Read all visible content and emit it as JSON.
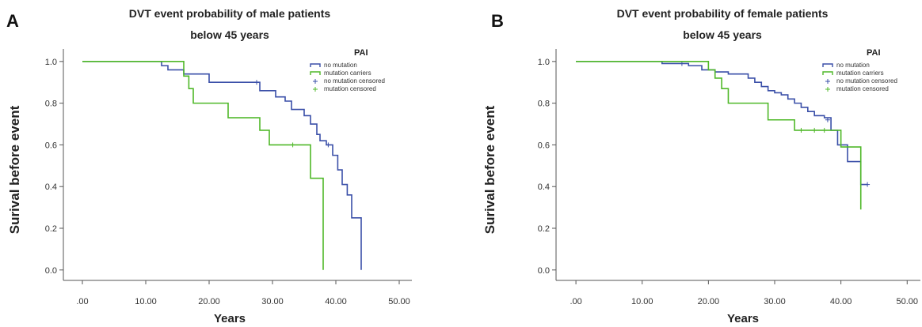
{
  "chart_data": [
    {
      "type": "line",
      "panel_label": "A",
      "title": "DVT event probability of male patients",
      "subtitle": "below  45 years",
      "xlabel": "Years",
      "ylabel": "Surival before event",
      "xlim": [
        -3,
        52
      ],
      "ylim": [
        -0.05,
        1.06
      ],
      "x_ticks": [
        0,
        10,
        20,
        30,
        40,
        50
      ],
      "x_tick_labels": [
        ".00",
        "10.00",
        "20.00",
        "30.00",
        "40.00",
        "50.00"
      ],
      "y_ticks": [
        0,
        0.2,
        0.4,
        0.6,
        0.8,
        1.0
      ],
      "y_tick_labels": [
        "0.0",
        "0.2",
        "0.4",
        "0.6",
        "0.8",
        "1.0"
      ],
      "legend": {
        "title": "PAI",
        "placement": "top-right",
        "entries": [
          {
            "label": "no mutation",
            "color": "#3a4fa8",
            "style": "step"
          },
          {
            "label": "mutation carriers",
            "color": "#4fb828",
            "style": "step"
          },
          {
            "label": "no mutation censored",
            "color": "#3a4fa8",
            "style": "plus"
          },
          {
            "label": "mutation censored",
            "color": "#4fb828",
            "style": "plus"
          }
        ]
      },
      "series": [
        {
          "name": "no mutation",
          "color": "#3a4fa8",
          "points": [
            [
              0,
              1.0
            ],
            [
              11.5,
              1.0
            ],
            [
              12.5,
              0.98
            ],
            [
              13.5,
              0.96
            ],
            [
              16,
              0.94
            ],
            [
              20,
              0.9
            ],
            [
              28,
              0.86
            ],
            [
              30.5,
              0.83
            ],
            [
              32,
              0.81
            ],
            [
              33,
              0.77
            ],
            [
              35,
              0.74
            ],
            [
              36,
              0.7
            ],
            [
              37,
              0.65
            ],
            [
              37.5,
              0.62
            ],
            [
              38.5,
              0.6
            ],
            [
              39.5,
              0.55
            ],
            [
              40.3,
              0.48
            ],
            [
              41,
              0.41
            ],
            [
              41.8,
              0.36
            ],
            [
              42.5,
              0.25
            ],
            [
              44,
              0.25
            ],
            [
              44,
              0.0
            ]
          ],
          "censored": [
            [
              27.5,
              0.9
            ],
            [
              38.8,
              0.6
            ]
          ]
        },
        {
          "name": "mutation carriers",
          "color": "#4fb828",
          "points": [
            [
              0,
              1.0
            ],
            [
              15,
              1.0
            ],
            [
              16,
              0.93
            ],
            [
              16.8,
              0.87
            ],
            [
              17.5,
              0.8
            ],
            [
              23,
              0.73
            ],
            [
              28,
              0.67
            ],
            [
              29.5,
              0.6
            ],
            [
              36,
              0.44
            ],
            [
              38,
              0.44
            ],
            [
              38,
              0.0
            ]
          ],
          "censored": [
            [
              33.2,
              0.6
            ]
          ]
        }
      ]
    },
    {
      "type": "line",
      "panel_label": "B",
      "title": "DVT event probability of female patients",
      "subtitle": "below  45 years",
      "xlabel": "Years",
      "ylabel": "Surival before event",
      "xlim": [
        -3,
        52
      ],
      "ylim": [
        -0.05,
        1.06
      ],
      "x_ticks": [
        0,
        10,
        20,
        30,
        40,
        50
      ],
      "x_tick_labels": [
        ".00",
        "10.00",
        "20.00",
        "30.00",
        "40.00",
        "50.00"
      ],
      "y_ticks": [
        0,
        0.2,
        0.4,
        0.6,
        0.8,
        1.0
      ],
      "y_tick_labels": [
        "0.0",
        "0.2",
        "0.4",
        "0.6",
        "0.8",
        "1.0"
      ],
      "legend": {
        "title": "PAI",
        "placement": "top-right",
        "entries": [
          {
            "label": "no mutation",
            "color": "#3a4fa8",
            "style": "step"
          },
          {
            "label": "mutation carriers",
            "color": "#4fb828",
            "style": "step"
          },
          {
            "label": "no mutation censored",
            "color": "#3a4fa8",
            "style": "plus"
          },
          {
            "label": "mutation censored",
            "color": "#4fb828",
            "style": "plus"
          }
        ]
      },
      "series": [
        {
          "name": "no mutation",
          "color": "#3a4fa8",
          "points": [
            [
              0,
              1.0
            ],
            [
              13,
              0.99
            ],
            [
              17,
              0.98
            ],
            [
              19,
              0.96
            ],
            [
              21,
              0.95
            ],
            [
              23,
              0.94
            ],
            [
              26,
              0.92
            ],
            [
              27,
              0.9
            ],
            [
              28,
              0.88
            ],
            [
              29,
              0.86
            ],
            [
              30,
              0.85
            ],
            [
              31,
              0.84
            ],
            [
              32,
              0.82
            ],
            [
              33,
              0.8
            ],
            [
              34,
              0.78
            ],
            [
              35,
              0.76
            ],
            [
              36,
              0.74
            ],
            [
              37.5,
              0.73
            ],
            [
              38.5,
              0.67
            ],
            [
              39.5,
              0.6
            ],
            [
              41,
              0.52
            ],
            [
              42.5,
              0.52
            ],
            [
              43,
              0.41
            ],
            [
              44,
              0.41
            ]
          ],
          "censored": [
            [
              16,
              0.99
            ],
            [
              38,
              0.72
            ],
            [
              44,
              0.41
            ]
          ]
        },
        {
          "name": "mutation carriers",
          "color": "#4fb828",
          "points": [
            [
              0,
              1.0
            ],
            [
              19,
              1.0
            ],
            [
              20,
              0.96
            ],
            [
              21,
              0.92
            ],
            [
              22,
              0.87
            ],
            [
              23,
              0.8
            ],
            [
              29,
              0.72
            ],
            [
              33,
              0.67
            ],
            [
              39,
              0.67
            ],
            [
              40,
              0.59
            ],
            [
              43,
              0.59
            ],
            [
              43,
              0.29
            ]
          ],
          "censored": [
            [
              34,
              0.67
            ],
            [
              36,
              0.67
            ],
            [
              37.5,
              0.67
            ]
          ]
        }
      ]
    }
  ]
}
